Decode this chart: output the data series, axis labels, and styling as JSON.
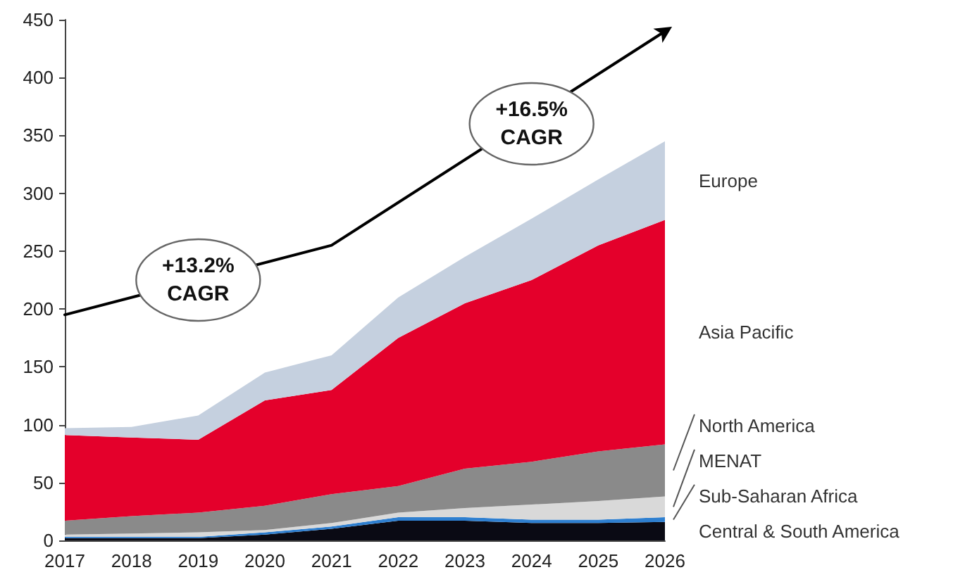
{
  "chart_data": {
    "type": "area",
    "stacked": true,
    "legend": false,
    "grid": false,
    "categories": [
      "2017",
      "2018",
      "2019",
      "2020",
      "2021",
      "2022",
      "2023",
      "2024",
      "2025",
      "2026"
    ],
    "ylim": [
      0,
      450
    ],
    "yticks": [
      0,
      50,
      100,
      150,
      200,
      250,
      300,
      350,
      400,
      450
    ],
    "series": [
      {
        "name": "Central & South America",
        "color": "#0a0a14",
        "values": [
          2,
          2,
          2,
          5,
          10,
          17,
          17,
          15,
          15,
          16
        ]
      },
      {
        "name": "Sub-Saharan Africa",
        "color": "#2e7fd0",
        "values": [
          1,
          1,
          1,
          2,
          2,
          3,
          3,
          3,
          3,
          4
        ]
      },
      {
        "name": "MENAT",
        "color": "#d9d9d9",
        "values": [
          2,
          3,
          4,
          2,
          3,
          4,
          8,
          13,
          16,
          18
        ]
      },
      {
        "name": "North America",
        "color": "#8a8a8a",
        "values": [
          12,
          15,
          17,
          21,
          25,
          23,
          34,
          37,
          43,
          45
        ]
      },
      {
        "name": "Asia Pacific",
        "color": "#e4002b",
        "values": [
          74,
          68,
          63,
          91,
          90,
          128,
          143,
          157,
          178,
          194
        ]
      },
      {
        "name": "Europe",
        "color": "#c5d0df",
        "values": [
          6,
          9,
          21,
          24,
          30,
          35,
          40,
          53,
          57,
          68
        ]
      },
      {
        "type": "line",
        "color": "#000000",
        "values": [
          195,
          null,
          null,
          null,
          255,
          null,
          null,
          null,
          null,
          440
        ]
      }
    ],
    "annotations": [
      {
        "text": "+13.2%\nCAGR",
        "x": "2019",
        "y": 225
      },
      {
        "text": "+16.5%\nCAGR",
        "x": "2024",
        "y": 360
      }
    ]
  }
}
